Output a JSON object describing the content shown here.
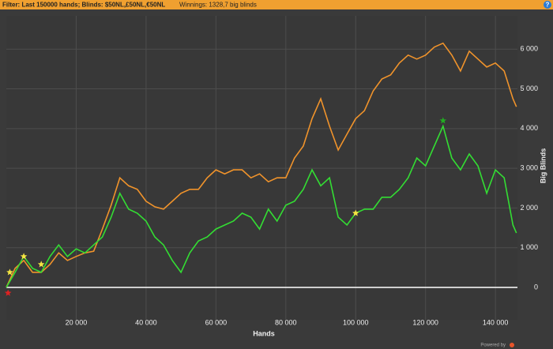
{
  "header": {
    "filter": "Filter: Last 150000 hands; Blinds: $50NL,£50NL,€50NL",
    "winnings": "Winnings: 1328,7 big blinds",
    "help": "?"
  },
  "footer": "Powered by",
  "chart_data": {
    "type": "line",
    "x_label": "Hands",
    "y_label": "Big Blinds",
    "x": [
      0,
      2500,
      5000,
      7500,
      10000,
      12500,
      15000,
      17500,
      20000,
      22500,
      25000,
      27500,
      30000,
      32500,
      35000,
      37500,
      40000,
      42500,
      45000,
      47500,
      50000,
      52500,
      55000,
      57500,
      60000,
      62500,
      65000,
      67500,
      70000,
      72500,
      75000,
      77500,
      80000,
      82500,
      85000,
      87500,
      90000,
      92500,
      95000,
      97500,
      100000,
      102500,
      105000,
      107500,
      110000,
      112500,
      115000,
      117500,
      120000,
      122500,
      125000,
      127500,
      130000,
      132500,
      135000,
      137500,
      140000,
      142500,
      145000,
      146000
    ],
    "series": [
      {
        "color": "#f0932b",
        "values": [
          0,
          480,
          680,
          380,
          380,
          580,
          870,
          680,
          780,
          870,
          910,
          1470,
          2070,
          2760,
          2560,
          2470,
          2170,
          2030,
          1970,
          2170,
          2370,
          2470,
          2470,
          2760,
          2960,
          2860,
          2960,
          2960,
          2760,
          2860,
          2660,
          2760,
          2760,
          3260,
          3560,
          4250,
          4750,
          4060,
          3460,
          3860,
          4250,
          4450,
          4950,
          5250,
          5350,
          5650,
          5850,
          5750,
          5850,
          6050,
          6150,
          5850,
          5450,
          5950,
          5750,
          5550,
          5650,
          5450,
          4750,
          4550
        ]
      },
      {
        "color": "#33dd33",
        "values": [
          0,
          380,
          780,
          480,
          380,
          780,
          1070,
          780,
          970,
          870,
          1070,
          1270,
          1770,
          2370,
          1970,
          1870,
          1670,
          1270,
          1070,
          680,
          380,
          870,
          1170,
          1270,
          1470,
          1570,
          1670,
          1870,
          1770,
          1470,
          1970,
          1670,
          2070,
          2170,
          2470,
          2960,
          2560,
          2760,
          1770,
          1570,
          1870,
          1970,
          1970,
          2270,
          2270,
          2470,
          2760,
          3260,
          3060,
          3560,
          4060,
          3260,
          2960,
          3360,
          3060,
          2370,
          2960,
          2760,
          1570,
          1370
        ]
      }
    ],
    "markers": [
      {
        "x": 500,
        "y": -140,
        "color": "#dd2222"
      },
      {
        "x": 1000,
        "y": 380,
        "color": "#f5e642"
      },
      {
        "x": 5000,
        "y": 780,
        "color": "#f5e642"
      },
      {
        "x": 10000,
        "y": 580,
        "color": "#f5e642"
      },
      {
        "x": 100000,
        "y": 1870,
        "color": "#f5e642"
      },
      {
        "x": 125000,
        "y": 4200,
        "color": "#22aa22"
      }
    ],
    "xlim": [
      0,
      146300
    ],
    "ylim": [
      -815,
      6840
    ],
    "xticks": [
      {
        "value": 20000,
        "label": "20 000"
      },
      {
        "value": 40000,
        "label": "40 000"
      },
      {
        "value": 60000,
        "label": "60 000"
      },
      {
        "value": 80000,
        "label": "80 000"
      },
      {
        "value": 100000,
        "label": "100 000"
      },
      {
        "value": 120000,
        "label": "120 000"
      },
      {
        "value": 140000,
        "label": "140 000"
      }
    ],
    "yticks": [
      0,
      {
        "value": 1000,
        "label": "1 000"
      },
      {
        "value": 2000,
        "label": "2 000"
      },
      {
        "value": 3000,
        "label": "3 000"
      },
      {
        "value": 4000,
        "label": "4 000"
      },
      {
        "value": 5000,
        "label": "5 000"
      },
      {
        "value": 6000,
        "label": "6 000"
      }
    ],
    "grid": true
  }
}
